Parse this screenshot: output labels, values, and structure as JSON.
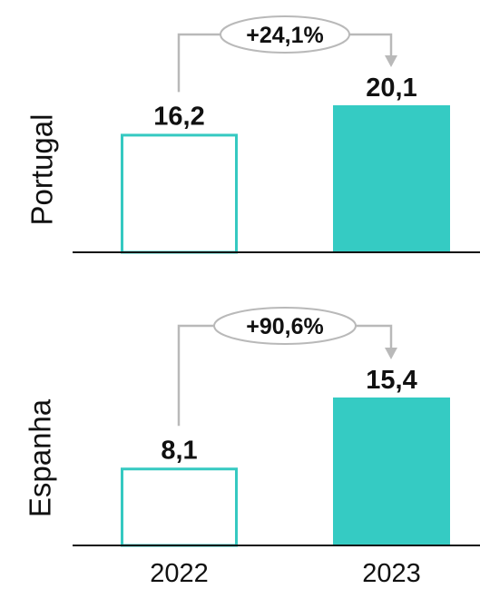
{
  "chart_data": {
    "type": "bar",
    "categories": [
      "2022",
      "2023"
    ],
    "panels": [
      {
        "label": "Portugal",
        "values": [
          16.2,
          20.1
        ],
        "value_labels": [
          "16,2",
          "20,1"
        ],
        "change_label": "+24,1%"
      },
      {
        "label": "Espanha",
        "values": [
          8.1,
          15.4
        ],
        "value_labels": [
          "8,1",
          "15,4"
        ],
        "change_label": "+90,6%"
      }
    ],
    "colors": {
      "bar_2022_outline": "#35c9c1",
      "bar_2022_fill": "#ffffff",
      "bar_2023_fill": "#35cbc3",
      "connector": "#b9b9b9",
      "axis": "#111111"
    }
  }
}
